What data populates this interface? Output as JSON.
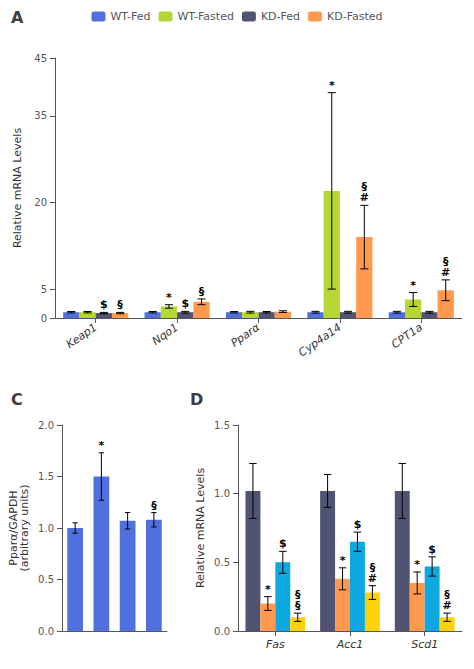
{
  "chart_data": [
    {
      "type": "bar",
      "title": "A",
      "categories": [
        "Keap1",
        "Nqo1",
        "Pparα",
        "Cyp4a14",
        "CPT1a"
      ],
      "series": [
        {
          "name": "WT-Fed",
          "values": [
            1.0,
            1.0,
            1.0,
            1.0,
            1.0
          ],
          "errors": [
            0.12,
            0.12,
            0.12,
            0.15,
            0.15
          ]
        },
        {
          "name": "WT-Fasted",
          "values": [
            1.0,
            2.0,
            1.0,
            22.0,
            3.2
          ],
          "errors": [
            0.12,
            0.3,
            0.15,
            17.0,
            1.2
          ]
        },
        {
          "name": "KD-Fed",
          "values": [
            0.85,
            1.0,
            1.0,
            1.0,
            1.0
          ],
          "errors": [
            0.12,
            0.15,
            0.12,
            0.15,
            0.15
          ]
        },
        {
          "name": "KD-Fasted",
          "values": [
            0.85,
            2.8,
            1.1,
            14.0,
            4.8
          ],
          "errors": [
            0.12,
            0.5,
            0.15,
            5.5,
            1.8
          ]
        }
      ],
      "ylabel": "Relative mRNA Levels",
      "ylim": [
        0,
        45
      ],
      "yticks": [
        0,
        5,
        20,
        35,
        45
      ],
      "grid": false,
      "legend": "top",
      "annotations": [
        {
          "category": "Keap1",
          "series": "KD-Fed",
          "text": [
            "$"
          ]
        },
        {
          "category": "Keap1",
          "series": "KD-Fasted",
          "text": [
            "§"
          ]
        },
        {
          "category": "Nqo1",
          "series": "WT-Fasted",
          "text": [
            "*"
          ]
        },
        {
          "category": "Nqo1",
          "series": "KD-Fed",
          "text": [
            "$"
          ]
        },
        {
          "category": "Nqo1",
          "series": "KD-Fasted",
          "text": [
            "§"
          ]
        },
        {
          "category": "Cyp4a14",
          "series": "WT-Fasted",
          "text": [
            "*"
          ]
        },
        {
          "category": "Cyp4a14",
          "series": "KD-Fasted",
          "text": [
            "§",
            "#"
          ]
        },
        {
          "category": "CPT1a",
          "series": "WT-Fasted",
          "text": [
            "*"
          ]
        },
        {
          "category": "CPT1a",
          "series": "KD-Fasted",
          "text": [
            "§",
            "#"
          ]
        }
      ]
    },
    {
      "type": "bar",
      "title": "C",
      "categories": [
        null,
        null,
        null,
        null
      ],
      "values": [
        1.0,
        1.5,
        1.07,
        1.08
      ],
      "errors": [
        0.05,
        0.23,
        0.08,
        0.07
      ],
      "ylabel": "Pparα/GAPDH\n(arbitrary units)",
      "ylim": [
        0,
        2.0
      ],
      "yticks": [
        {
          "value": 0,
          "label": "0.0"
        },
        0.5,
        {
          "value": 1,
          "label": "1.0"
        },
        1.5,
        {
          "value": 2,
          "label": "2.0"
        }
      ],
      "grid": false,
      "tick_labels": "y",
      "annotations": [
        {
          "index": 1,
          "text": [
            "*"
          ]
        },
        {
          "index": 3,
          "text": [
            "§"
          ]
        }
      ]
    },
    {
      "type": "bar",
      "title": "D",
      "categories": [
        "Fas",
        "Acc1",
        "Scd1"
      ],
      "series": [
        {
          "name": "WT-Fed",
          "values": [
            1.02,
            1.02,
            1.02
          ],
          "errors": [
            0.2,
            0.12,
            0.2
          ]
        },
        {
          "name": "WT-Fasted",
          "values": [
            0.2,
            0.38,
            0.35
          ],
          "errors": [
            0.05,
            0.08,
            0.08
          ]
        },
        {
          "name": "KD-Fed",
          "values": [
            0.5,
            0.65,
            0.47
          ],
          "errors": [
            0.08,
            0.07,
            0.07
          ]
        },
        {
          "name": "KD-Fasted",
          "values": [
            0.1,
            0.28,
            0.1
          ],
          "errors": [
            0.03,
            0.05,
            0.03
          ]
        }
      ],
      "ylabel": "Relative mRNA Levels",
      "ylim": [
        0,
        1.5
      ],
      "yticks": [
        {
          "value": 0,
          "label": "0.0"
        },
        0.5,
        {
          "value": 1,
          "label": "1.0"
        },
        1.5
      ],
      "grid": false,
      "annotations": [
        {
          "category": "Fas",
          "series": "WT-Fasted",
          "text": [
            "*"
          ]
        },
        {
          "category": "Fas",
          "series": "KD-Fed",
          "text": [
            "$"
          ]
        },
        {
          "category": "Fas",
          "series": "KD-Fasted",
          "text": [
            "§",
            "§"
          ]
        },
        {
          "category": "Acc1",
          "series": "WT-Fasted",
          "text": [
            "*"
          ]
        },
        {
          "category": "Acc1",
          "series": "KD-Fed",
          "text": [
            "$"
          ]
        },
        {
          "category": "Acc1",
          "series": "KD-Fasted",
          "text": [
            "§",
            "#"
          ]
        },
        {
          "category": "Scd1",
          "series": "WT-Fasted",
          "text": [
            "*"
          ]
        },
        {
          "category": "Scd1",
          "series": "KD-Fed",
          "text": [
            "$"
          ]
        },
        {
          "category": "Scd1",
          "series": "KD-Fasted",
          "text": [
            "§",
            "#"
          ]
        }
      ]
    }
  ]
}
